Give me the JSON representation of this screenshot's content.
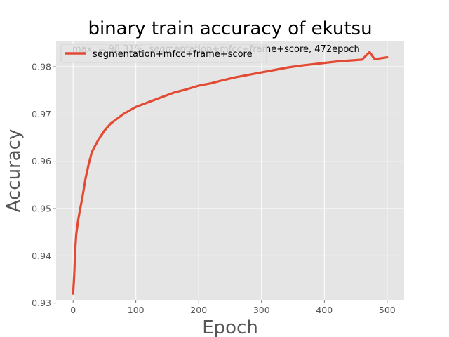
{
  "chart_data": {
    "type": "line",
    "title": "binary train accuracy of ekutsu",
    "xlabel": "Epoch",
    "ylabel": "Accuracy",
    "xlim": [
      -27,
      527
    ],
    "ylim": [
      0.9307,
      0.9855
    ],
    "xticks": [
      0,
      100,
      200,
      300,
      400,
      500
    ],
    "yticks": [
      0.93,
      0.94,
      0.95,
      0.96,
      0.97,
      0.98
    ],
    "ytick_labels": [
      "0.93",
      "0.94",
      "0.95",
      "0.96",
      "0.97",
      "0.98"
    ],
    "grid": true,
    "legend_position": "upper-left",
    "annotation": "max. = 98.31%, segmentation+mfcc+frame+score, 472epoch",
    "series": [
      {
        "name": "segmentation+mfcc+frame+score",
        "color": "#e24a33",
        "x": [
          0,
          1,
          2,
          3,
          5,
          8,
          10,
          15,
          20,
          25,
          30,
          40,
          50,
          60,
          70,
          80,
          100,
          120,
          140,
          160,
          180,
          200,
          220,
          240,
          260,
          280,
          300,
          320,
          340,
          360,
          380,
          400,
          420,
          440,
          460,
          472,
          480,
          490,
          500
        ],
        "y": [
          0.932,
          0.934,
          0.9365,
          0.9405,
          0.9445,
          0.9475,
          0.949,
          0.9525,
          0.9565,
          0.9595,
          0.962,
          0.9645,
          0.9665,
          0.968,
          0.969,
          0.97,
          0.9715,
          0.9725,
          0.9735,
          0.9745,
          0.9752,
          0.976,
          0.9765,
          0.9772,
          0.9778,
          0.9783,
          0.9788,
          0.9793,
          0.9798,
          0.9802,
          0.9805,
          0.9808,
          0.9811,
          0.9813,
          0.9815,
          0.9831,
          0.9816,
          0.9818,
          0.982
        ]
      }
    ]
  }
}
